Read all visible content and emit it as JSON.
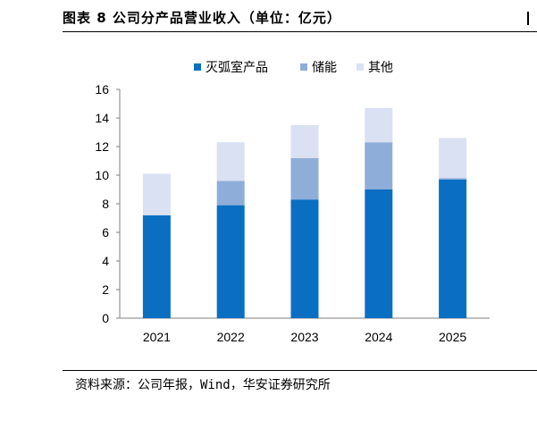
{
  "header": {
    "title": "图表 8 公司分产品营业收入（单位：亿元）"
  },
  "footer": {
    "source": "资料来源：公司年报，Wind，华安证券研究所"
  },
  "chart_data": {
    "type": "bar",
    "stacked": true,
    "title": "",
    "xlabel": "",
    "ylabel": "",
    "ylim": [
      0,
      16
    ],
    "yticks": [
      0,
      2,
      4,
      6,
      8,
      10,
      12,
      14,
      16
    ],
    "grid": false,
    "legend_position": "top",
    "categories": [
      "2021",
      "2022",
      "2023",
      "2024",
      "2025"
    ],
    "series": [
      {
        "name": "灭弧室产品",
        "color": "#0a6fc2",
        "values": [
          7.2,
          7.9,
          8.3,
          9.0,
          9.7
        ]
      },
      {
        "name": "储能",
        "color": "#8fadd9",
        "values": [
          0.0,
          1.7,
          2.9,
          3.3,
          0.1
        ]
      },
      {
        "name": "其他",
        "color": "#d9e1f2",
        "values": [
          2.9,
          2.7,
          2.3,
          2.4,
          2.8
        ]
      }
    ]
  }
}
